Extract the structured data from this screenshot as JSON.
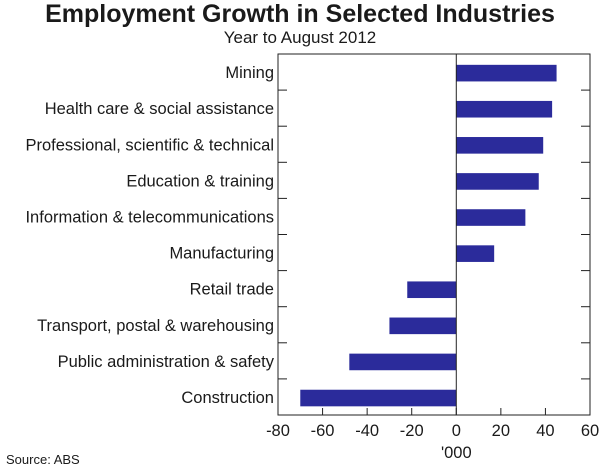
{
  "chart_data": {
    "type": "bar",
    "orientation": "horizontal",
    "title": "Employment Growth in Selected Industries",
    "subtitle": "Year to August 2012",
    "xlabel": "'000",
    "ylabel": "",
    "xlim": [
      -80,
      60
    ],
    "xticks": [
      -80,
      -60,
      -40,
      -20,
      0,
      20,
      40,
      60
    ],
    "grid": false,
    "categories": [
      "Mining",
      "Health care & social assistance",
      "Professional, scientific & technical",
      "Education & training",
      "Information & telecommunications",
      "Manufacturing",
      "Retail trade",
      "Transport, postal & warehousing",
      "Public administration & safety",
      "Construction"
    ],
    "values": [
      45,
      43,
      39,
      37,
      31,
      17,
      -22,
      -30,
      -48,
      -70
    ],
    "bar_color": "#2b2b9b",
    "source": "Source: ABS"
  }
}
